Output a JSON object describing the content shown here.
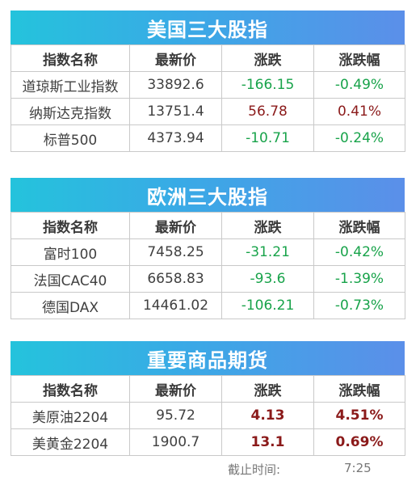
{
  "us": {
    "title": "美国三大股指",
    "headers": [
      "指数名称",
      "最新价",
      "涨跌",
      "涨跌幅"
    ],
    "rows": [
      {
        "name": "道琼斯工业指数",
        "price": "33892.6",
        "change": "-166.15",
        "pct": "-0.49%",
        "dir": "down"
      },
      {
        "name": "纳斯达克指数",
        "price": "13751.4",
        "change": "56.78",
        "pct": "0.41%",
        "dir": "up"
      },
      {
        "name": "标普500",
        "price": "4373.94",
        "change": "-10.71",
        "pct": "-0.24%",
        "dir": "down"
      }
    ]
  },
  "eu": {
    "title": "欧洲三大股指",
    "headers": [
      "指数名称",
      "最新价",
      "涨跌",
      "涨跌幅"
    ],
    "rows": [
      {
        "name": "富时100",
        "price": "7458.25",
        "change": "-31.21",
        "pct": "-0.42%",
        "dir": "down"
      },
      {
        "name": "法国CAC40",
        "price": "6658.83",
        "change": "-93.6",
        "pct": "-1.39%",
        "dir": "down"
      },
      {
        "name": "德国DAX",
        "price": "14461.02",
        "change": "-106.21",
        "pct": "-0.73%",
        "dir": "down"
      }
    ]
  },
  "commodities": {
    "title": "重要商品期货",
    "headers": [
      "指数名称",
      "最新价",
      "涨跌",
      "涨跌幅"
    ],
    "rows": [
      {
        "name": "美原油2204",
        "price": "95.72",
        "change": "4.13",
        "pct": "4.51%",
        "dir": "up"
      },
      {
        "name": "美黄金2204",
        "price": "1900.7",
        "change": "13.1",
        "pct": "0.69%",
        "dir": "up"
      }
    ]
  },
  "footer": {
    "label": "截止时间:",
    "time": "7:25"
  },
  "colors": {
    "banner_start": "#24c3dc",
    "banner_end": "#5b8fe9",
    "down": "#18a34a",
    "up": "#8b1a1a"
  }
}
